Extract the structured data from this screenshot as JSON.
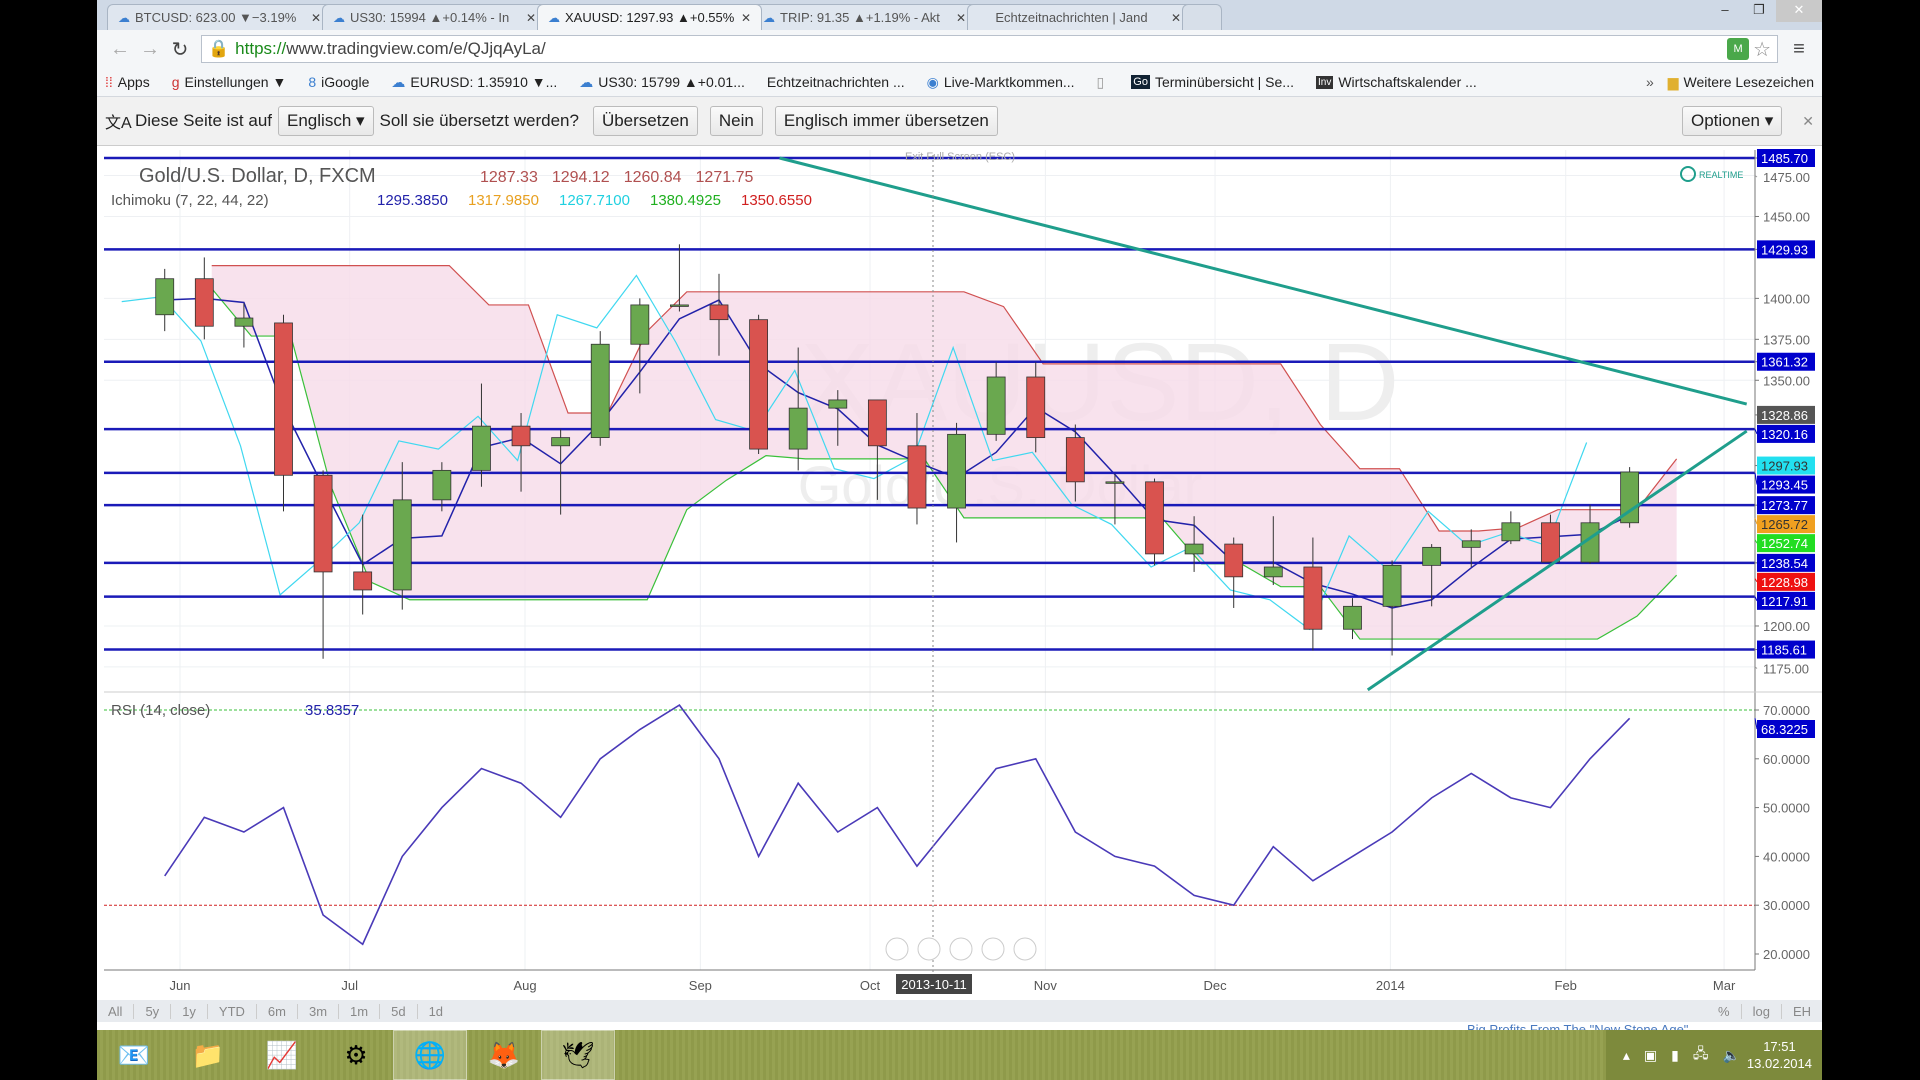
{
  "browser": {
    "tabs": [
      {
        "label": "BTCUSD: 623.00 ▼−3.19%",
        "active": false
      },
      {
        "label": "US30: 15994 ▲+0.14% - In",
        "active": false
      },
      {
        "label": "XAUUSD: 1297.93 ▲+0.55%",
        "active": true
      },
      {
        "label": "TRIP: 91.35 ▲+1.19% - Akt",
        "active": false
      },
      {
        "label": "Echtzeitnachrichten | Jand",
        "active": false
      }
    ],
    "url_scheme": "https://",
    "url_rest": "www.tradingview.com/e/QJjqAyLa/",
    "bookmarks": [
      "Apps",
      "Einstellungen ▼",
      "iGoogle",
      "EURUSD: 1.35910 ▼...",
      "US30: 15799 ▲+0.01...",
      "Echtzeitnachrichten ...",
      "Live-Marktkommen...",
      "",
      "Terminübersicht | Se...",
      "Wirtschaftskalender ..."
    ],
    "bookmarks_more": "»",
    "bookmarks_folder": "Weitere Lesezeichen",
    "translate": {
      "prefix": "Diese Seite ist auf",
      "language": "Englisch",
      "question": "Soll sie übersetzt werden?",
      "translate_btn": "Übersetzen",
      "no_btn": "Nein",
      "always_btn": "Englisch immer übersetzen",
      "options_btn": "Optionen"
    }
  },
  "chart": {
    "title": "Gold/U.S. Dollar, D, FXCM",
    "ohlc": [
      "1287.33",
      "1294.12",
      "1260.84",
      "1271.75"
    ],
    "ichimoku_label": "Ichimoku (7, 22, 44, 22)",
    "ichimoku_values": [
      "1295.3850",
      "1317.9850",
      "1267.7100",
      "1380.4925",
      "1350.6550"
    ],
    "ichimoku_colors": [
      "#2222aa",
      "#e8a020",
      "#20d0e0",
      "#20b020",
      "#d02020"
    ],
    "realtime": "REALTIME",
    "exit_fullscreen": "Exit Full Screen (ESC)",
    "watermark_symbol": "XAUUSD, D",
    "watermark_name": "Gold/U.S. Dollar",
    "rsi_label": "RSI (14, close)",
    "rsi_value": "35.8357",
    "crosshair_date": "2013-10-11",
    "range_buttons": [
      "All",
      "5y",
      "1y",
      "YTD",
      "6m",
      "3m",
      "1m",
      "5d",
      "1d"
    ],
    "scale_buttons": [
      "%",
      "log",
      "EH"
    ],
    "footer_link": "Big Profits From The \"New Stone Age\""
  },
  "chart_data": [
    {
      "type": "candlestick",
      "title": "Gold/U.S. Dollar, D, FXCM",
      "ylim": [
        1160,
        1490
      ],
      "y_ticks": [
        1175,
        1200,
        1350,
        1375,
        1400,
        1450,
        1475
      ],
      "x_ticks": [
        {
          "label": "Jun",
          "date": "2013-06-01"
        },
        {
          "label": "Jul",
          "date": "2013-07-01"
        },
        {
          "label": "Aug",
          "date": "2013-08-01"
        },
        {
          "label": "Sep",
          "date": "2013-09-01"
        },
        {
          "label": "Oct",
          "date": "2013-10-01"
        },
        {
          "label": "Nov",
          "date": "2013-11-01"
        },
        {
          "label": "Dec",
          "date": "2013-12-01"
        },
        {
          "label": "2014",
          "date": "2014-01-01"
        },
        {
          "label": "Feb",
          "date": "2014-02-01"
        },
        {
          "label": "Mar",
          "date": "2014-03-01"
        }
      ],
      "bars": [
        [
          "2013-05-27",
          1390,
          1418,
          1380,
          1412
        ],
        [
          "2013-06-03",
          1412,
          1425,
          1375,
          1383
        ],
        [
          "2013-06-10",
          1383,
          1397,
          1370,
          1388
        ],
        [
          "2013-06-17",
          1385,
          1390,
          1270,
          1292
        ],
        [
          "2013-06-24",
          1292,
          1295,
          1180,
          1233
        ],
        [
          "2013-07-01",
          1233,
          1268,
          1207,
          1222
        ],
        [
          "2013-07-08",
          1222,
          1300,
          1210,
          1277
        ],
        [
          "2013-07-15",
          1277,
          1300,
          1270,
          1295
        ],
        [
          "2013-07-22",
          1295,
          1348,
          1285,
          1322
        ],
        [
          "2013-07-29",
          1322,
          1330,
          1282,
          1310
        ],
        [
          "2013-08-05",
          1310,
          1320,
          1268,
          1315
        ],
        [
          "2013-08-12",
          1315,
          1380,
          1310,
          1372
        ],
        [
          "2013-08-19",
          1372,
          1400,
          1342,
          1396
        ],
        [
          "2013-08-26",
          1396,
          1433,
          1392,
          1396
        ],
        [
          "2013-09-02",
          1396,
          1415,
          1365,
          1387
        ],
        [
          "2013-09-09",
          1387,
          1390,
          1305,
          1308
        ],
        [
          "2013-09-16",
          1308,
          1370,
          1295,
          1333
        ],
        [
          "2013-09-23",
          1333,
          1344,
          1310,
          1338
        ],
        [
          "2013-09-30",
          1338,
          1338,
          1277,
          1310
        ],
        [
          "2013-10-07",
          1310,
          1330,
          1262,
          1272
        ],
        [
          "2013-10-14",
          1272,
          1324,
          1251,
          1317
        ],
        [
          "2013-10-21",
          1317,
          1361,
          1313,
          1352
        ],
        [
          "2013-10-28",
          1352,
          1361,
          1306,
          1315
        ],
        [
          "2013-11-04",
          1315,
          1323,
          1276,
          1288
        ],
        [
          "2013-11-11",
          1288,
          1293,
          1262,
          1288
        ],
        [
          "2013-11-18",
          1288,
          1290,
          1237,
          1244
        ],
        [
          "2013-11-25",
          1244,
          1267,
          1233,
          1250
        ],
        [
          "2013-12-02",
          1250,
          1254,
          1211,
          1230
        ],
        [
          "2013-12-09",
          1230,
          1267,
          1225,
          1236
        ],
        [
          "2013-12-16",
          1236,
          1254,
          1185,
          1198
        ],
        [
          "2013-12-23",
          1198,
          1217,
          1192,
          1212
        ],
        [
          "2013-12-30",
          1212,
          1240,
          1182,
          1237
        ],
        [
          "2014-01-06",
          1237,
          1250,
          1212,
          1248
        ],
        [
          "2014-01-13",
          1248,
          1259,
          1236,
          1252
        ],
        [
          "2014-01-20",
          1252,
          1270,
          1250,
          1263
        ],
        [
          "2014-01-27",
          1263,
          1268,
          1239,
          1239
        ],
        [
          "2014-02-03",
          1239,
          1274,
          1238,
          1263
        ],
        [
          "2014-02-10",
          1263,
          1297,
          1260,
          1294
        ]
      ],
      "horizontal_lines": [
        1485.7,
        1429.93,
        1361.32,
        1320.16,
        1293.45,
        1273.77,
        1238.54,
        1217.91,
        1185.61
      ],
      "price_labels": [
        {
          "value": "1485.70",
          "color": "#0000cc"
        },
        {
          "value": "1429.93",
          "color": "#0000cc"
        },
        {
          "value": "1361.32",
          "color": "#0000cc"
        },
        {
          "value": "1328.86",
          "color": "#555555"
        },
        {
          "value": "1320.16",
          "color": "#0000cc"
        },
        {
          "value": "1297.93",
          "color": "#22e0f0"
        },
        {
          "value": "1293.45",
          "color": "#0000cc"
        },
        {
          "value": "1273.77",
          "color": "#0000cc"
        },
        {
          "value": "1265.72",
          "color": "#f0a020"
        },
        {
          "value": "1252.74",
          "color": "#22dd22"
        },
        {
          "value": "1238.54",
          "color": "#0000cc"
        },
        {
          "value": "1228.98",
          "color": "#ee1111"
        },
        {
          "value": "1217.91",
          "color": "#0000cc"
        },
        {
          "value": "1185.61",
          "color": "#0000cc"
        }
      ],
      "trendlines": [
        {
          "from": [
            "2013-09-15",
            1485.7
          ],
          "to": [
            "2014-03-05",
            1335.5
          ]
        },
        {
          "from": [
            "2013-12-28",
            1161
          ],
          "to": [
            "2014-03-05",
            1319
          ]
        }
      ],
      "colors": {
        "up": "#6aa84f",
        "down": "#d9534f",
        "levels": "#1a1ab8",
        "trend": "#1f9e8c",
        "cloud": "#f6dbe9"
      }
    },
    {
      "type": "line",
      "title": "RSI (14, close)",
      "ylim": [
        15,
        73
      ],
      "y_ticks": [
        "20.0000",
        "30.0000",
        "40.0000",
        "50.0000",
        "60.0000",
        "70.0000"
      ],
      "current_label": "68.3225",
      "series": [
        {
          "values": [
            36,
            48,
            45,
            50,
            28,
            22,
            40,
            50,
            58,
            55,
            48,
            60,
            66,
            71,
            60,
            40,
            55,
            45,
            50,
            38,
            48,
            58,
            60,
            45,
            40,
            38,
            32,
            30,
            42,
            35,
            40,
            45,
            52,
            57,
            52,
            50,
            60,
            68.3
          ]
        }
      ],
      "levels": {
        "overbought": 70,
        "oversold": 30
      }
    }
  ],
  "taskbar": {
    "apps": [
      "outlook",
      "explorer",
      "monitor",
      "settings",
      "chrome",
      "firefox",
      "thunderbird"
    ],
    "active": [
      4,
      6
    ],
    "time": "17:51",
    "date": "13.02.2014"
  }
}
